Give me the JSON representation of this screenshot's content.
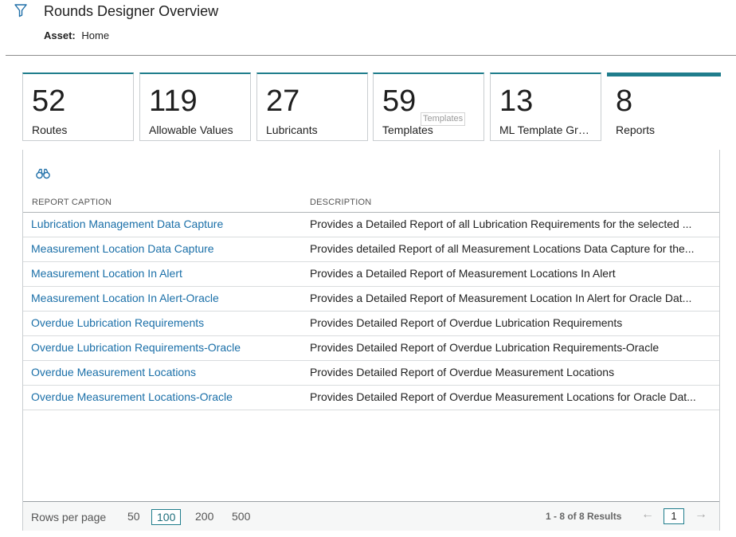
{
  "header": {
    "title": "Rounds Designer Overview",
    "asset_label": "Asset:",
    "asset_value": "Home"
  },
  "tiles": [
    {
      "count": "52",
      "label": "Routes"
    },
    {
      "count": "119",
      "label": "Allowable Values"
    },
    {
      "count": "27",
      "label": "Lubricants"
    },
    {
      "count": "59",
      "label": "Templates"
    },
    {
      "count": "13",
      "label": "ML Template Grou..."
    },
    {
      "count": "8",
      "label": "Reports"
    }
  ],
  "tooltip": "Templates",
  "table": {
    "columns": [
      "REPORT CAPTION",
      "DESCRIPTION"
    ],
    "rows": [
      {
        "caption": "Lubrication Management Data Capture",
        "description": "Provides a Detailed Report of all Lubrication Requirements for the selected ..."
      },
      {
        "caption": "Measurement Location Data Capture",
        "description": "Provides detailed Report of all Measurement Locations Data Capture for the..."
      },
      {
        "caption": "Measurement Location In Alert",
        "description": "Provides a Detailed Report of Measurement Locations In Alert"
      },
      {
        "caption": "Measurement Location In Alert-Oracle",
        "description": "Provides a Detailed Report of Measurement Location In Alert for Oracle Dat..."
      },
      {
        "caption": "Overdue Lubrication Requirements",
        "description": "Provides Detailed Report of Overdue Lubrication Requirements"
      },
      {
        "caption": "Overdue Lubrication Requirements-Oracle",
        "description": "Provides Detailed Report of Overdue Lubrication Requirements-Oracle"
      },
      {
        "caption": "Overdue Measurement Locations",
        "description": "Provides Detailed Report of Overdue Measurement Locations"
      },
      {
        "caption": "Overdue Measurement Locations-Oracle",
        "description": "Provides Detailed Report of Overdue Measurement Locations for Oracle Dat..."
      }
    ]
  },
  "footer": {
    "rows_per_page_label": "Rows per page",
    "options": [
      "50",
      "100",
      "200",
      "500"
    ],
    "selected_option": "100",
    "results_text": "1 - 8 of 8 Results",
    "current_page": "1",
    "prev_arrow": "←",
    "next_arrow": "→"
  },
  "colors": {
    "accent": "#1f7d8c",
    "link": "#1a6fa8"
  },
  "icons": {
    "filter": "filter-icon",
    "search": "binoculars-icon"
  }
}
